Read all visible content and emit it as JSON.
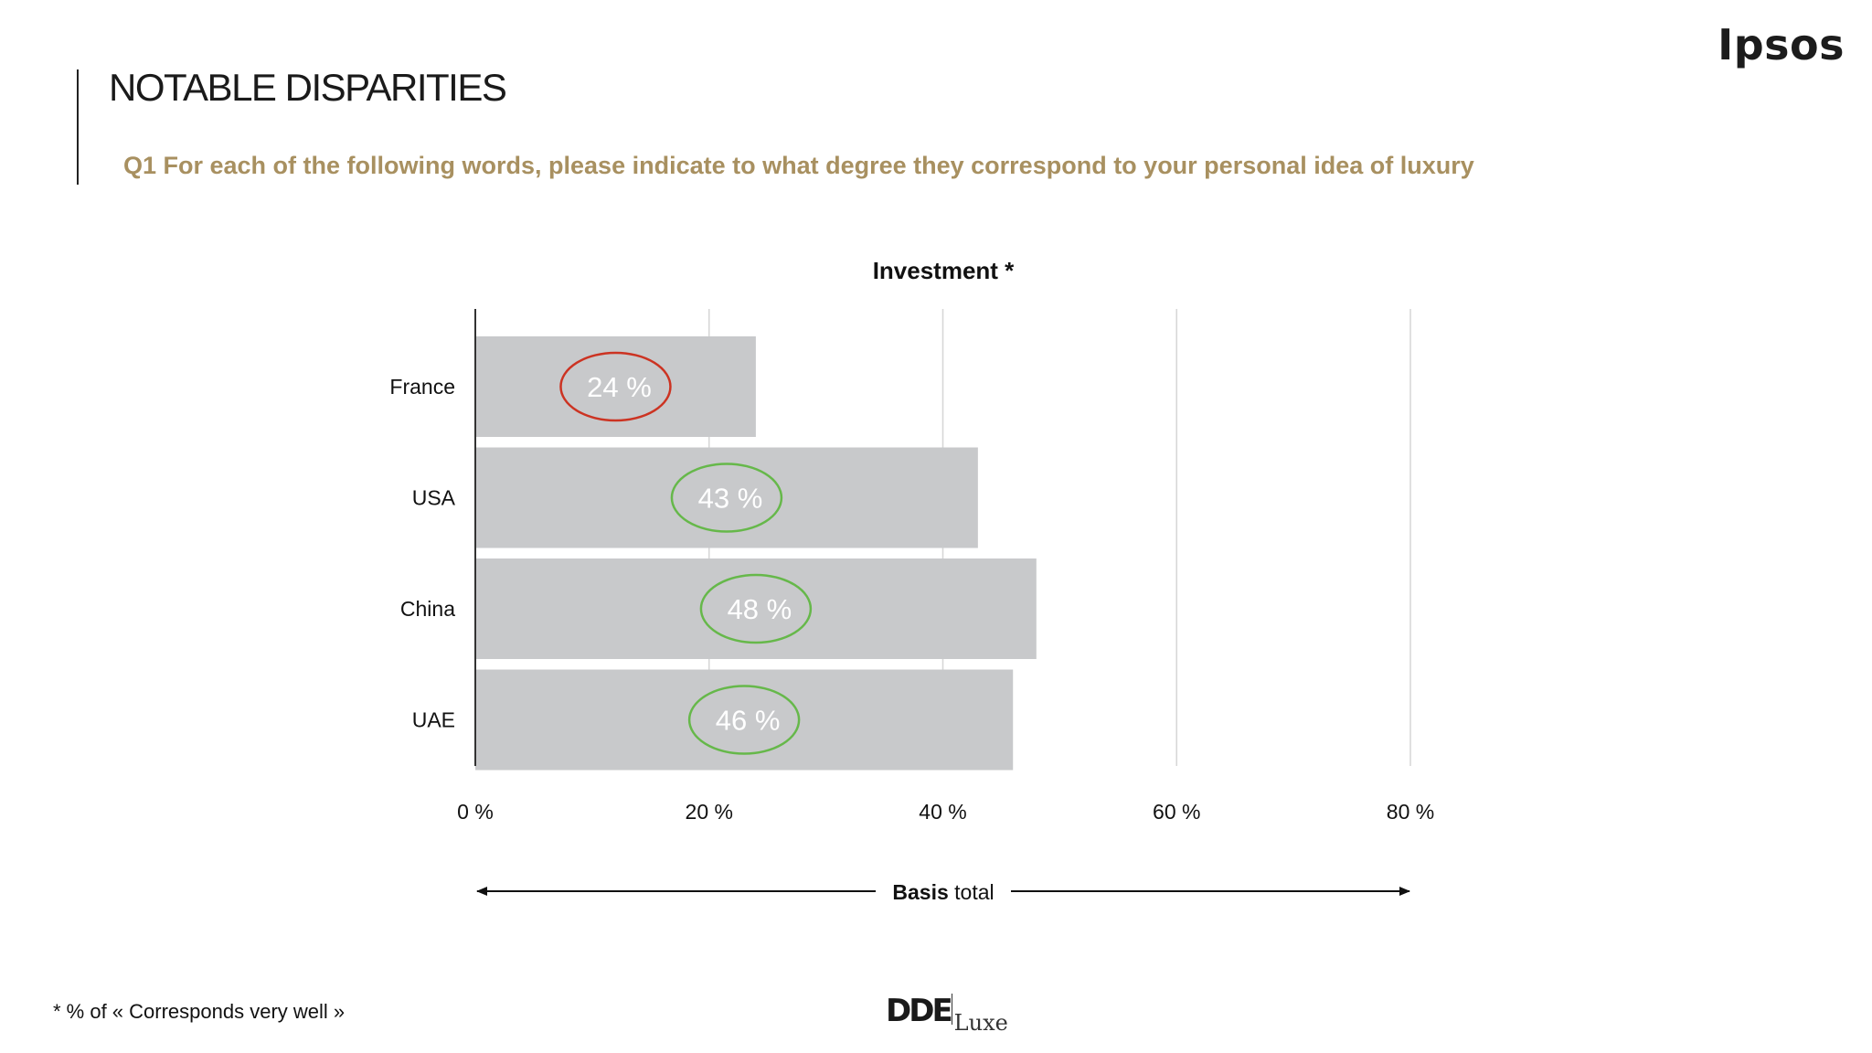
{
  "header": {
    "brand": "Ipsos",
    "title": "NOTABLE DISPARITIES",
    "question": "Q1 For each of the following words, please indicate to what degree they correspond to your personal idea of luxury"
  },
  "chart_data": {
    "type": "bar",
    "orientation": "horizontal",
    "title": "Investment *",
    "categories": [
      "France",
      "USA",
      "China",
      "UAE"
    ],
    "values": [
      24,
      43,
      48,
      46
    ],
    "value_labels": [
      "24 %",
      "43 %",
      "48 %",
      "46 %"
    ],
    "highlight": [
      "low",
      "high",
      "high",
      "high"
    ],
    "xlim": [
      0,
      80
    ],
    "x_ticks": [
      {
        "value": 0,
        "label": "0 %"
      },
      {
        "value": 20,
        "label": "20 %"
      },
      {
        "value": 40,
        "label": "40 %"
      },
      {
        "value": 60,
        "label": "60 %"
      },
      {
        "value": 80,
        "label": "80 %"
      }
    ],
    "grid": true,
    "basis": {
      "bold": "Basis",
      "rest": " total"
    },
    "colors": {
      "bar": "#c8c9cb",
      "low": "#cc3322",
      "high": "#66b84a",
      "grid": "#d6d6d6",
      "label": "#ffffff"
    }
  },
  "footer": {
    "footnote": "* % of « Corresponds very well »",
    "logo_main": "DDE",
    "logo_sub": "Luxe"
  }
}
